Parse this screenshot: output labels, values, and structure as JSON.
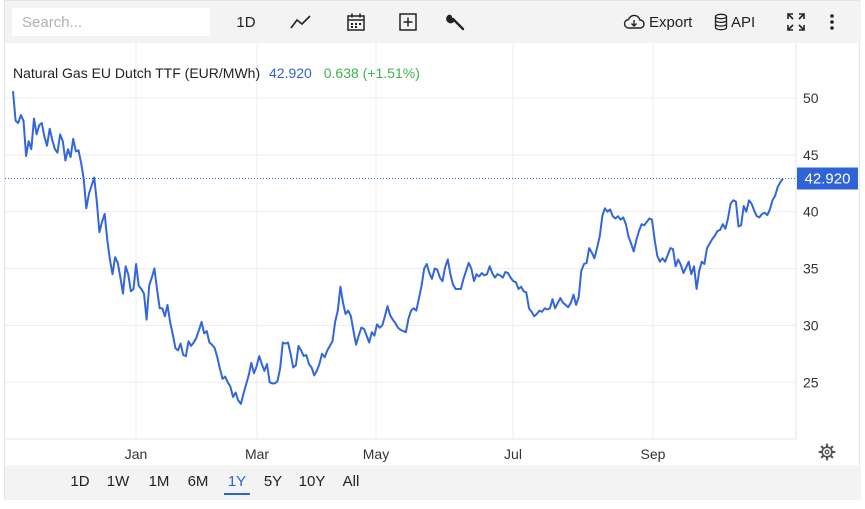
{
  "toolbar": {
    "search_placeholder": "Search...",
    "interval_label": "1D",
    "export_label": "Export",
    "api_label": "API"
  },
  "legend": {
    "name": "Natural Gas EU Dutch TTF (EUR/MWh)",
    "price": "42.920",
    "change": "0.638 (+1.51%)",
    "price_color": "#2f63d8",
    "change_color": "#3bb54a"
  },
  "price_badge": "42.920",
  "ranges": [
    "1D",
    "1W",
    "1M",
    "6M",
    "1Y",
    "5Y",
    "10Y",
    "All"
  ],
  "active_range": "1Y",
  "icons": {
    "chart_type": "line-chart-icon",
    "calendar": "calendar-icon",
    "add": "plus-square-icon",
    "settings": "wrench-icon",
    "export": "cloud-download-icon",
    "api": "database-icon",
    "fullscreen": "fullscreen-icon",
    "more": "more-vertical-icon",
    "chart_settings": "gear-icon"
  },
  "chart_data": {
    "type": "line",
    "title": "Natural Gas EU Dutch TTF (EUR/MWh)",
    "x_tick_labels": [
      "Jan",
      "Mar",
      "May",
      "Jul",
      "Sep"
    ],
    "y_ticks": [
      25,
      30,
      35,
      40,
      45,
      50
    ],
    "ylim": [
      20.5,
      53.5
    ],
    "last_value": 42.92,
    "line_color": "#3366dd",
    "grid": true,
    "series": [
      {
        "values": [
          50.6,
          48.0,
          47.8,
          48.5,
          48.0,
          44.9,
          46.2,
          45.5,
          48.2,
          46.8,
          47.6,
          47.8,
          46.6,
          45.8,
          47.3,
          46.3,
          45.5,
          45.2,
          46.8,
          46.2,
          44.5,
          45.5,
          44.8,
          46.4,
          45.3,
          45.4,
          44.3,
          42.9,
          40.3,
          41.6,
          42.3,
          43.0,
          40.9,
          38.2,
          39.1,
          39.8,
          37.5,
          35.8,
          34.5,
          36.0,
          35.5,
          34.2,
          32.8,
          35.2,
          34.5,
          33.0,
          33.2,
          35.4,
          33.5,
          33.2,
          32.8,
          30.5,
          33.5,
          34.2,
          35.0,
          33.2,
          31.5,
          31.5,
          30.8,
          31.8,
          30.3,
          29.2,
          28.0,
          27.8,
          28.4,
          27.4,
          27.3,
          28.6,
          28.2,
          28.5,
          28.9,
          29.6,
          30.3,
          29.3,
          29.5,
          28.5,
          28.3,
          28.0,
          27.2,
          26.2,
          25.3,
          25.5,
          25.0,
          24.6,
          23.7,
          24.1,
          23.4,
          23.1,
          24.0,
          24.8,
          25.6,
          26.7,
          25.8,
          26.4,
          27.3,
          26.6,
          26.0,
          26.6,
          25.0,
          24.9,
          24.9,
          25.1,
          26.2,
          28.5,
          28.4,
          28.5,
          27.5,
          26.3,
          26.5,
          28.2,
          27.8,
          27.3,
          27.4,
          26.6,
          26.3,
          25.6,
          26.0,
          26.6,
          27.5,
          27.2,
          27.8,
          28.2,
          28.6,
          30.3,
          31.3,
          33.4,
          32.0,
          31.0,
          31.3,
          30.8,
          29.5,
          28.3,
          29.1,
          29.8,
          29.7,
          29.1,
          28.5,
          29.4,
          29.1,
          30.1,
          29.8,
          30.0,
          30.8,
          31.7,
          30.9,
          30.5,
          30.2,
          29.8,
          29.6,
          29.5,
          29.4,
          30.6,
          31.3,
          31.5,
          31.3,
          32.4,
          33.5,
          35.0,
          35.4,
          34.6,
          34.1,
          35.0,
          34.9,
          34.2,
          33.9,
          35.1,
          35.8,
          34.5,
          33.6,
          33.2,
          33.2,
          33.2,
          34.1,
          34.8,
          35.5,
          35.0,
          33.9,
          34.5,
          34.3,
          34.6,
          34.4,
          34.5,
          35.2,
          34.6,
          34.2,
          34.5,
          34.4,
          34.2,
          34.7,
          34.6,
          34.2,
          33.9,
          33.8,
          33.2,
          33.4,
          33.0,
          32.9,
          31.5,
          31.2,
          30.8,
          31.0,
          31.3,
          31.2,
          31.5,
          31.4,
          31.5,
          32.3,
          31.5,
          32.0,
          32.4,
          32.0,
          31.8,
          31.6,
          32.0,
          32.7,
          31.8,
          32.5,
          34.8,
          35.4,
          35.5,
          36.8,
          36.4,
          35.9,
          36.8,
          37.8,
          39.6,
          40.3,
          40.0,
          40.2,
          39.6,
          39.4,
          39.6,
          39.3,
          39.5,
          38.9,
          37.8,
          37.2,
          36.5,
          37.5,
          38.3,
          38.9,
          38.8,
          39.1,
          39.4,
          39.3,
          37.5,
          36.1,
          35.6,
          35.9,
          35.6,
          36.2,
          36.8,
          36.7,
          35.2,
          35.8,
          35.3,
          34.6,
          35.1,
          35.6,
          34.5,
          35.2,
          33.2,
          34.8,
          35.6,
          35.4,
          36.8,
          37.2,
          37.6,
          37.9,
          38.3,
          38.4,
          38.9,
          38.5,
          39.4,
          40.7,
          41.0,
          40.9,
          38.7,
          38.8,
          40.5,
          40.0,
          41.0,
          40.7,
          40.1,
          39.6,
          39.5,
          39.8,
          39.9,
          39.7,
          40.2,
          41.0,
          41.4,
          42.2,
          42.6,
          42.92
        ]
      }
    ]
  }
}
